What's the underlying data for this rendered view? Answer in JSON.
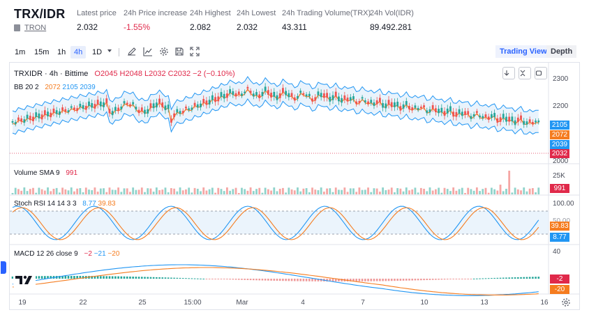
{
  "ticker": {
    "pair": "TRX/IDR",
    "network": "TRON",
    "stats": [
      {
        "label": "Latest price",
        "value": "2.032",
        "negative": false
      },
      {
        "label": "24h Price increase",
        "value": "-1.55%",
        "negative": true
      },
      {
        "label": "24h Highest",
        "value": "2.082",
        "negative": false
      },
      {
        "label": "24h Lowest",
        "value": "2.032",
        "negative": false
      },
      {
        "label": "24h Trading Volume(TRX)",
        "value": "43.311",
        "negative": false
      },
      {
        "label": "24h Vol(IDR)",
        "value": "89.492.281",
        "negative": false
      }
    ]
  },
  "toolbar": {
    "timeframes": [
      "1m",
      "15m",
      "1h",
      "4h",
      "1D"
    ],
    "active_timeframe": "4h",
    "views": {
      "trading_view": "Trading View",
      "depth": "Depth"
    }
  },
  "chart": {
    "legend": {
      "symbol": "TRXIDR · 4h · Bittime",
      "o": "O2045",
      "h": "H2048",
      "l": "L2032",
      "c": "C2032",
      "chg": "−2 (−0.10%)"
    },
    "bb": {
      "name": "BB 20 2",
      "basis": "2072",
      "upper": "2105",
      "lower": "2039"
    },
    "volume": {
      "name": "Volume SMA 9",
      "value": "991"
    },
    "stoch": {
      "name": "Stoch RSI 14 14 3 3",
      "k": "8.77",
      "d": "39.83"
    },
    "macd": {
      "name": "MACD 12 26 close 9",
      "hist": "−2",
      "macd": "−21",
      "signal": "−20"
    },
    "price_axis": [
      "2300",
      "2200",
      "2100",
      "2000"
    ],
    "price_badges": {
      "upper": "2105",
      "basis": "2072",
      "lower": "2039",
      "last": "2032"
    },
    "volume_axis": "25K",
    "volume_badge": "991",
    "stoch_axis": [
      "100.00",
      "50.00"
    ],
    "stoch_badges": {
      "d": "39.83",
      "k": "8.77"
    },
    "macd_axis": "40",
    "macd_badges": {
      "hist": "-2",
      "signal": "-20"
    },
    "x_axis": [
      "19",
      "22",
      "25",
      "15:00",
      "Mar",
      "4",
      "7",
      "10",
      "13",
      "16"
    ]
  },
  "colors": {
    "up": "#26a69a",
    "down": "#ef5350",
    "accent": "#2962ff",
    "bb_upper": "#2196f3",
    "bb_basis": "#f57c1f",
    "bb_fill": "#e3f0fb"
  }
}
